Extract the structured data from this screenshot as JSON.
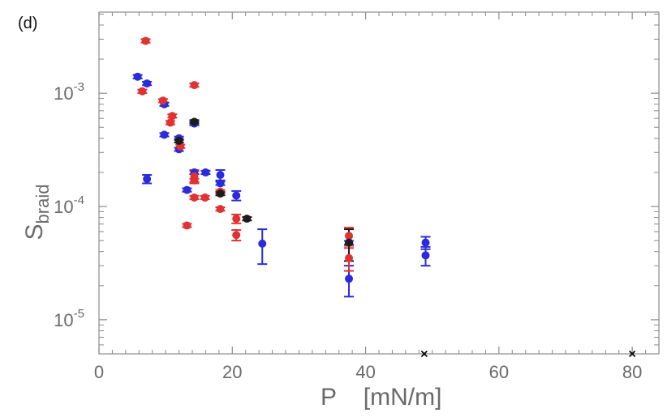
{
  "chart_data": {
    "type": "scatter",
    "panel_label": "(d)",
    "xlabel": "P    [mN/m]",
    "ylabel": {
      "main": "S",
      "sub": "braid"
    },
    "xlim": [
      0,
      84
    ],
    "ylim": [
      5e-06,
      0.0052
    ],
    "yscale": "log",
    "x_ticks": [
      0,
      20,
      40,
      60,
      80
    ],
    "x_tick_labels": [
      "0",
      "20",
      "40",
      "60",
      "80"
    ],
    "y_ticks": [
      1e-05,
      0.0001,
      0.001
    ],
    "y_tick_labels": [
      {
        "base": "10",
        "exp": "-5"
      },
      {
        "base": "10",
        "exp": "-4"
      },
      {
        "base": "10",
        "exp": "-3"
      }
    ],
    "series": [
      {
        "name": "blue",
        "color": "#2b2bdc",
        "points": [
          {
            "x": 5.8,
            "y": 0.0014
          },
          {
            "x": 7.2,
            "y": 0.00122
          },
          {
            "x": 7.2,
            "y": 0.000175,
            "err": 1.5e-05
          },
          {
            "x": 9.8,
            "y": 0.0008
          },
          {
            "x": 9.8,
            "y": 0.00043
          },
          {
            "x": 12.0,
            "y": 0.0004
          },
          {
            "x": 12.0,
            "y": 0.00032
          },
          {
            "x": 13.2,
            "y": 0.00014
          },
          {
            "x": 14.3,
            "y": 0.00054
          },
          {
            "x": 14.3,
            "y": 0.0002
          },
          {
            "x": 16.0,
            "y": 0.0002
          },
          {
            "x": 18.2,
            "y": 0.00019,
            "err": 2e-05
          },
          {
            "x": 18.2,
            "y": 0.00016
          },
          {
            "x": 20.6,
            "y": 0.000125,
            "err": 1.2e-05
          },
          {
            "x": 24.5,
            "y": 4.7e-05,
            "err": 1.6e-05
          },
          {
            "x": 37.5,
            "y": 4.8e-05
          },
          {
            "x": 37.5,
            "y": 2.3e-05,
            "err": 7e-06
          },
          {
            "x": 49.0,
            "y": 4.8e-05,
            "err": 6e-06
          },
          {
            "x": 49.0,
            "y": 3.7e-05,
            "err": 7e-06
          }
        ]
      },
      {
        "name": "red",
        "color": "#e03232",
        "points": [
          {
            "x": 7.0,
            "y": 0.0029
          },
          {
            "x": 6.5,
            "y": 0.00104
          },
          {
            "x": 9.6,
            "y": 0.00086
          },
          {
            "x": 11.0,
            "y": 0.00063
          },
          {
            "x": 10.7,
            "y": 0.00055
          },
          {
            "x": 12.2,
            "y": 0.00034
          },
          {
            "x": 14.3,
            "y": 0.00118
          },
          {
            "x": 14.3,
            "y": 0.000185,
            "err": 2.5e-05
          },
          {
            "x": 14.3,
            "y": 0.00017
          },
          {
            "x": 14.3,
            "y": 0.00012
          },
          {
            "x": 15.9,
            "y": 0.00012
          },
          {
            "x": 18.2,
            "y": 0.000135
          },
          {
            "x": 18.2,
            "y": 9.5e-05
          },
          {
            "x": 13.2,
            "y": 6.8e-05
          },
          {
            "x": 20.6,
            "y": 7.8e-05,
            "err": 7e-06
          },
          {
            "x": 20.6,
            "y": 5.6e-05,
            "err": 6e-06
          },
          {
            "x": 37.5,
            "y": 5.5e-05,
            "err": 1e-05
          },
          {
            "x": 37.5,
            "y": 3.5e-05,
            "err": 8e-06
          }
        ]
      },
      {
        "name": "black",
        "color": "#1c1c1c",
        "points": [
          {
            "x": 12.0,
            "y": 0.00038
          },
          {
            "x": 14.3,
            "y": 0.00056
          },
          {
            "x": 18.2,
            "y": 0.00013
          },
          {
            "x": 22.2,
            "y": 7.8e-05
          },
          {
            "x": 37.5,
            "y": 4.8e-05,
            "err": 1.5e-05
          }
        ]
      }
    ],
    "x_markers": [
      {
        "x": 48.8,
        "y": 5e-06
      },
      {
        "x": 80.0,
        "y": 5e-06
      }
    ]
  }
}
